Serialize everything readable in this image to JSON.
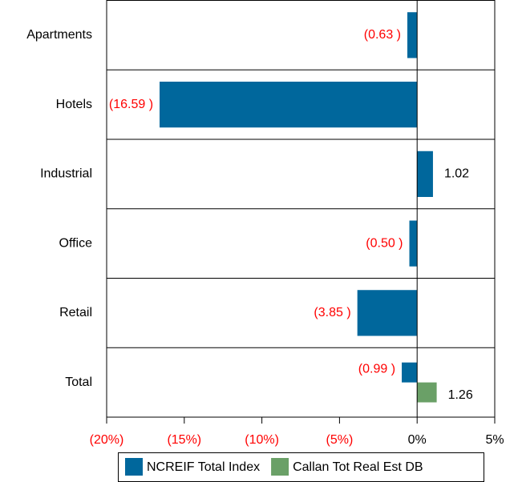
{
  "chart_data": {
    "type": "barh",
    "categories": [
      "Apartments",
      "Hotels",
      "Industrial",
      "Office",
      "Retail",
      "Total"
    ],
    "series": [
      {
        "name": "NCREIF Total Index",
        "color": "#00679c",
        "values": [
          -0.63,
          -16.59,
          1.02,
          -0.5,
          -3.85,
          -0.99
        ],
        "value_labels": [
          "(0.63 )",
          "(16.59 )",
          "1.02",
          "(0.50 )",
          "(3.85 )",
          "(0.99 )"
        ]
      },
      {
        "name": "Callan Tot Real Est DB",
        "color": "#6aa067",
        "values": [
          null,
          null,
          null,
          null,
          null,
          1.26
        ],
        "value_labels": [
          null,
          null,
          null,
          null,
          null,
          "1.26"
        ]
      }
    ],
    "xlim": [
      -20,
      5
    ],
    "xticks": [
      {
        "value": -20,
        "label": "(20%)"
      },
      {
        "value": -15,
        "label": "(15%)"
      },
      {
        "value": -10,
        "label": "(10%)"
      },
      {
        "value": -5,
        "label": "(5%)"
      },
      {
        "value": 0,
        "label": "0%"
      },
      {
        "value": 5,
        "label": "5%"
      }
    ],
    "negative_label_color": "#ff0000",
    "legend": "bottom"
  }
}
